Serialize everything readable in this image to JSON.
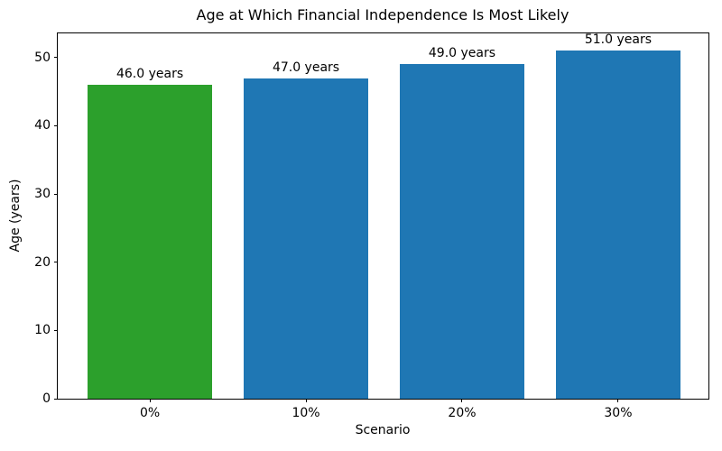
{
  "chart_data": {
    "type": "bar",
    "title": "Age at Which Financial Independence Is Most Likely",
    "xlabel": "Scenario",
    "ylabel": "Age (years)",
    "categories": [
      "0%",
      "10%",
      "20%",
      "30%"
    ],
    "values": [
      46,
      47,
      49,
      51
    ],
    "bar_labels": [
      "46.0 years",
      "47.0 years",
      "49.0 years",
      "51.0 years"
    ],
    "bar_colors": [
      "#2ca02c",
      "#1f77b4",
      "#1f77b4",
      "#1f77b4"
    ],
    "yticks": [
      0,
      10,
      20,
      30,
      40,
      50
    ],
    "ylim": [
      0,
      53.55
    ],
    "xlim": [
      -0.59,
      3.59
    ],
    "bar_width": 0.8,
    "grid": false,
    "legend": "none",
    "spine_color": "#000000",
    "text_color": "#000000",
    "background_color": "#ffffff"
  }
}
